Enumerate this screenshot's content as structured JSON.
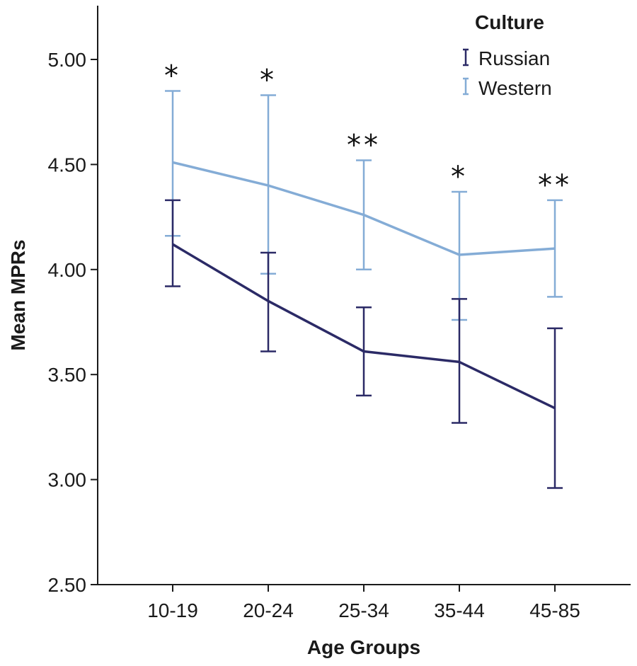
{
  "chart_data": {
    "type": "line",
    "title": "",
    "xlabel": "Age Groups",
    "ylabel": "Mean MPRs",
    "categories": [
      "10-19",
      "20-24",
      "25-34",
      "35-44",
      "45-85"
    ],
    "ylim": [
      2.5,
      5.25
    ],
    "yticks": [
      "2.50",
      "3.00",
      "3.50",
      "4.00",
      "4.50",
      "5.00"
    ],
    "grid": false,
    "legend": {
      "title": "Culture",
      "position": "top-right"
    },
    "series": [
      {
        "name": "Russian",
        "color": "#2b2a66",
        "values": [
          4.12,
          3.85,
          3.61,
          3.56,
          3.34
        ],
        "error_low": [
          3.92,
          3.61,
          3.4,
          3.27,
          2.96
        ],
        "error_high": [
          4.33,
          4.08,
          3.82,
          3.86,
          3.72
        ]
      },
      {
        "name": "Western",
        "color": "#84acd6",
        "values": [
          4.51,
          4.4,
          4.26,
          4.07,
          4.1
        ],
        "error_low": [
          4.16,
          3.98,
          4.0,
          3.76,
          3.87
        ],
        "error_high": [
          4.85,
          4.83,
          4.52,
          4.37,
          4.33
        ]
      }
    ],
    "annotations": [
      "*",
      "*",
      "**",
      "*",
      "**"
    ]
  }
}
